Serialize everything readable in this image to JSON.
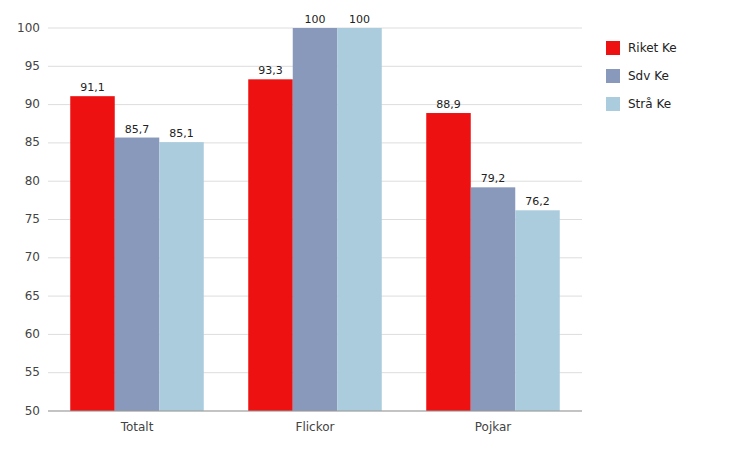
{
  "chart_data": {
    "type": "bar",
    "categories": [
      "Totalt",
      "Flickor",
      "Pojkar"
    ],
    "series": [
      {
        "name": "Riket Ke",
        "color": "#EE1111",
        "values": [
          91.1,
          93.3,
          88.9
        ],
        "value_labels": [
          "91,1",
          "93,3",
          "88,9"
        ]
      },
      {
        "name": "Sdv Ke",
        "color": "#8899BB",
        "values": [
          85.7,
          100.0,
          79.2
        ],
        "value_labels": [
          "85,7",
          "100",
          "79,2"
        ]
      },
      {
        "name": "Strå Ke",
        "color": "#AACCDD",
        "values": [
          85.1,
          100.0,
          76.2
        ],
        "value_labels": [
          "85,1",
          "100",
          "76,2"
        ]
      }
    ],
    "ylim": [
      50,
      100
    ],
    "yticks": [
      50,
      55,
      60,
      65,
      70,
      75,
      80,
      85,
      90,
      95,
      100
    ],
    "grid": true,
    "legend": "right",
    "data_labels": true
  }
}
